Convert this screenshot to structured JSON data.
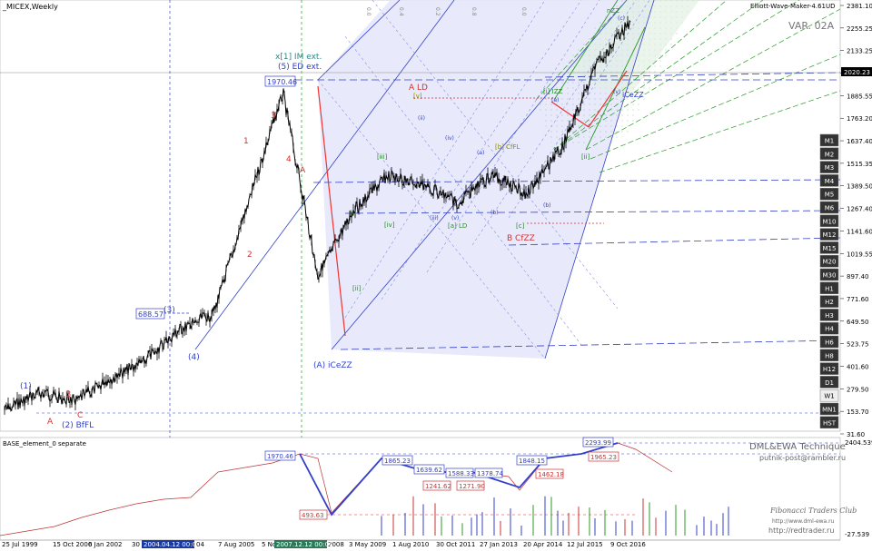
{
  "window": {
    "symbol_title": "_MICEX,Weekly",
    "indicator_name": "Elliott-Wave-Maker-4.61UD",
    "variant": "VAR. 02A"
  },
  "timeframes": [
    "M1",
    "M2",
    "M3",
    "M4",
    "M5",
    "M6",
    "M10",
    "M12",
    "M15",
    "M20",
    "M30",
    "H1",
    "H2",
    "H3",
    "H4",
    "H6",
    "H8",
    "H12",
    "D1",
    "W1",
    "MN1",
    "HST"
  ],
  "active_timeframe": "W1",
  "price_axis": {
    "ticks": [
      "2381.10",
      "2255.25",
      "2133.25",
      "2011.45",
      "1885.55",
      "1763.20",
      "1637.40",
      "1515.35",
      "1389.50",
      "1267.40",
      "1141.60",
      "1019.55",
      "897.40",
      "771.60",
      "649.50",
      "523.75",
      "401.60",
      "279.50",
      "153.70",
      "31.60"
    ],
    "current_price": "2020.23"
  },
  "time_axis": {
    "labels": [
      "25 Jul 1999",
      "15 Oct 2000",
      "6 Jan 2002",
      "30",
      "7 Aug 2005",
      "5 No",
      "2008",
      "3 May 2009",
      "1 Aug 2010",
      "30 Oct 2011",
      "27 Jan 2013",
      "20 Apr 2014",
      "12 Jul 2015",
      "9 Oct 2016"
    ],
    "cursor_labels": [
      "2004.04.12 00:00",
      "2007.12.12 00:00"
    ],
    "cursor_tail": "04"
  },
  "waves": {
    "w1_top": "(1)",
    "wA_low": "A",
    "wB_low": "B",
    "wC_low": "C",
    "w2": "(2) BfFL",
    "w3_label": "(3)",
    "w3_price": "688.57",
    "w4": "(4)",
    "w1_red": "1",
    "w2_red": "2",
    "w3_red": "3",
    "w4_red": "4",
    "wA_red": "A",
    "w5_top_a": "x[1] IM ext.",
    "w5_top_b": "(5) ED ext.",
    "peak_price": "1970.46",
    "bottom": "(A) iCeZZ",
    "ALD": "A LD",
    "v_mark": "[v]",
    "i_mark": "[i]",
    "iii_mark": "[iii]",
    "iv_mark": "[iv]",
    "ii_mark": "[ii]",
    "a_LD": "[a] LD",
    "b_CfFL": "[b] CfFL",
    "c_mark": "[c]",
    "B_CfZZ": "B CfZZ",
    "i_IZZ": "[i] IZZ",
    "nZZ": "nZZ",
    "iCeZZ2": "iCeZZ",
    "small_ii": "[ii]",
    "fib_top": [
      "0.0",
      "0.4",
      "0.2",
      "0.8",
      "0.0"
    ]
  },
  "sub_window": {
    "title": "BASE_element_0 separate",
    "brand1": "DML&EWA Technique",
    "brand2": "putnik-post@rambler.ru",
    "brand3": "Fibonacci Traders Club",
    "brand4": "http://www.dml-ewa.ru",
    "brand5": "http://redtrader.ru",
    "scale_top": "2404.539",
    "scale_bottom": "-27.539",
    "boxes_blue": [
      "1970.46",
      "1865.23",
      "1639.62",
      "1848.15",
      "2293.99"
    ],
    "boxes_red": [
      "493.63",
      "1241.62",
      "1271.90",
      "1462.18",
      "1965.23"
    ],
    "box_mid_1": "1588.33",
    "box_mid_2": "1378.74"
  },
  "chart_data": {
    "type": "line",
    "title": "_MICEX,Weekly",
    "xlabel": "",
    "ylabel": "",
    "ylim": [
      31.6,
      2381.1
    ],
    "x": [
      "1999",
      "2000",
      "2001",
      "2002",
      "2003",
      "2004",
      "2005",
      "2006",
      "2007",
      "2008",
      "2009",
      "2010",
      "2011",
      "2012",
      "2013",
      "2014",
      "2015",
      "2016",
      "2017"
    ],
    "series": [
      {
        "name": "MICEX",
        "values": [
          160,
          260,
          210,
          330,
          430,
          600,
          690,
          1300,
          1900,
          900,
          1250,
          1450,
          1400,
          1300,
          1450,
          1350,
          1600,
          2050,
          2300
        ]
      }
    ]
  }
}
